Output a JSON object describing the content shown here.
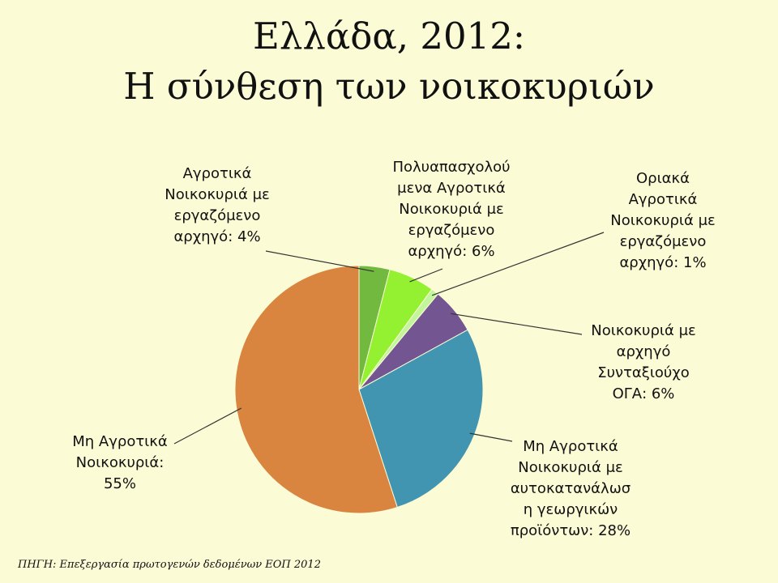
{
  "title_lines": [
    "Ελλάδα, 2012:",
    "Η σύνθεση των νοικοκυριών"
  ],
  "source_note": "ΠΗΓΗ: Επεξεργασία πρωτογενών δεδομένων ΕΟΠ 2012",
  "chart_data": {
    "type": "pie",
    "title": "Ελλάδα, 2012: Η σύνθεση των νοικοκυριών",
    "start_angle_deg": 0,
    "direction": "clockwise",
    "slices": [
      {
        "name": "Αγροτικά Νοικοκυριά με εργαζόμενο αρχηγό",
        "value": 4,
        "color": "#71b93f",
        "label_lines": [
          "Αγροτικά",
          "Νοικοκυριά με",
          "εργαζόμενο",
          "αρχηγό:   4%"
        ]
      },
      {
        "name": "Πολυαπασχολούμενα Αγροτικά Νοικοκυριά με εργαζόμενο αρχηγό",
        "value": 6,
        "color": "#94f132",
        "label_lines": [
          "Πολυαπασχολού",
          "μενα Αγροτικά",
          "Νοικοκυριά με",
          "εργαζόμενο",
          "αρχηγό:   6%"
        ]
      },
      {
        "name": "Οριακά Αγροτικά Νοικοκυριά με εργαζόμενο αρχηγό",
        "value": 1,
        "color": "#c3f59b",
        "label_lines": [
          "Οριακά",
          "Αγροτικά",
          "Νοικοκυριά με",
          "εργαζόμενο",
          "αρχηγό: 1%"
        ]
      },
      {
        "name": "Νοικοκυριά με αρχηγό Συνταξιούχο ΟΓΑ",
        "value": 6,
        "color": "#725591",
        "label_lines": [
          "Νοικοκυριά με",
          "αρχηγό",
          "Συνταξιούχο",
          "ΟΓΑ: 6%"
        ]
      },
      {
        "name": "Μη Αγροτικά Νοικοκυριά με αυτοκατανάλωση γεωργικών προϊόντων",
        "value": 28,
        "color": "#4195b0",
        "label_lines": [
          "Μη Αγροτικά",
          "Νοικοκυριά με",
          "αυτοκατανάλωσ",
          "η γεωργικών",
          "προϊόντων: 28%"
        ]
      },
      {
        "name": "Μη Αγροτικά Νοικοκυριά",
        "value": 55,
        "color": "#d9843f",
        "label_lines": [
          "Μη Αγροτικά",
          "Νοικοκυριά:",
          "55%"
        ]
      }
    ]
  }
}
